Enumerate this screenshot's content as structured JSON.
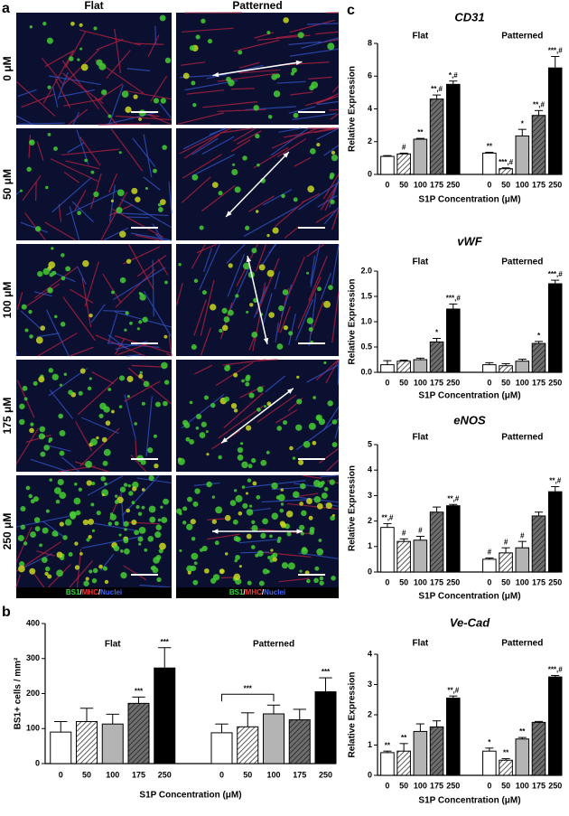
{
  "panels": {
    "a": "a",
    "b": "b",
    "c": "c"
  },
  "micrographs": {
    "columns": [
      "Flat",
      "Patterned"
    ],
    "rows": [
      "0 μM",
      "50 μM",
      "100 μM",
      "175 μM",
      "250 μM"
    ],
    "legend": [
      {
        "text": "BS1",
        "color": "#33dd33"
      },
      {
        "text": "/",
        "color": "#ffffff"
      },
      {
        "text": "MHC",
        "color": "#ff3333"
      },
      {
        "text": "/",
        "color": "#ffffff"
      },
      {
        "text": "Nuclei",
        "color": "#4466ff"
      }
    ]
  },
  "chart_data": [
    {
      "type": "bar",
      "ylabel": "BS1+ cells / mm²",
      "xlabel": "S1P Concentration (μM)",
      "categories": [
        "0",
        "50",
        "100",
        "175",
        "250"
      ],
      "fills": [
        "#ffffff",
        "hatch",
        "#b4b4b4",
        "darkhatch",
        "#000000"
      ],
      "ylim": [
        0,
        400
      ],
      "yticks": [
        0,
        100,
        200,
        300,
        400
      ],
      "series": [
        {
          "name": "Flat",
          "values": [
            90,
            120,
            113,
            172,
            273
          ],
          "errors": [
            30,
            38,
            28,
            18,
            58
          ],
          "annotations": [
            null,
            null,
            null,
            "***",
            "***"
          ]
        },
        {
          "name": "Patterned",
          "values": [
            88,
            105,
            142,
            125,
            205
          ],
          "errors": [
            25,
            40,
            25,
            30,
            40
          ],
          "annotations": [
            null,
            null,
            null,
            null,
            "***"
          ]
        }
      ],
      "bracket": {
        "series": 1,
        "from": 0,
        "to": 2,
        "label": "***"
      }
    },
    {
      "type": "bar",
      "title": "CD31",
      "ylabel": "Relative Expression",
      "xlabel": "S1P Concentration (μM)",
      "categories": [
        "0",
        "50",
        "100",
        "175",
        "250"
      ],
      "fills": [
        "#ffffff",
        "hatch",
        "#b4b4b4",
        "darkhatch",
        "#000000"
      ],
      "ylim": [
        0,
        8
      ],
      "yticks": [
        0,
        2,
        4,
        6,
        8
      ],
      "series": [
        {
          "name": "Flat",
          "values": [
            1.1,
            1.25,
            2.15,
            4.6,
            5.5
          ],
          "errors": [
            0.05,
            0.05,
            0.05,
            0.25,
            0.2
          ],
          "annotations": [
            null,
            "#",
            "**",
            "**,#",
            "*,#"
          ]
        },
        {
          "name": "Patterned",
          "values": [
            1.3,
            0.35,
            2.35,
            3.6,
            6.5
          ],
          "errors": [
            0.05,
            0.05,
            0.4,
            0.3,
            0.7
          ],
          "annotations": [
            "**",
            "***,#",
            "*",
            "**,#",
            "***,#"
          ]
        }
      ]
    },
    {
      "type": "bar",
      "title": "vWF",
      "ylabel": "Relative Expression",
      "xlabel": "S1P Concentration (μM)",
      "categories": [
        "0",
        "50",
        "100",
        "175",
        "250"
      ],
      "fills": [
        "#ffffff",
        "hatch",
        "#b4b4b4",
        "darkhatch",
        "#000000"
      ],
      "ylim": [
        0,
        2
      ],
      "yticks": [
        {
          "value": 0,
          "label": "0.0"
        },
        {
          "value": 0.5,
          "label": "0.5"
        },
        {
          "value": 1,
          "label": "1.0"
        },
        {
          "value": 1.5,
          "label": "1.5"
        },
        {
          "value": 2,
          "label": "2.0"
        }
      ],
      "series": [
        {
          "name": "Flat",
          "values": [
            0.15,
            0.22,
            0.25,
            0.6,
            1.25
          ],
          "errors": [
            0.08,
            0.02,
            0.03,
            0.07,
            0.1
          ],
          "annotations": [
            null,
            null,
            null,
            "*",
            "***,#"
          ]
        },
        {
          "name": "Patterned",
          "values": [
            0.15,
            0.13,
            0.22,
            0.57,
            1.75
          ],
          "errors": [
            0.04,
            0.04,
            0.04,
            0.04,
            0.07
          ],
          "annotations": [
            null,
            null,
            null,
            "*",
            "***,#"
          ]
        }
      ]
    },
    {
      "type": "bar",
      "title": "eNOS",
      "ylabel": "Relative Expression",
      "xlabel": "S1P Concentration (μM)",
      "categories": [
        "0",
        "50",
        "100",
        "175",
        "250"
      ],
      "fills": [
        "#ffffff",
        "hatch",
        "#b4b4b4",
        "darkhatch",
        "#000000"
      ],
      "ylim": [
        0,
        5
      ],
      "yticks": [
        0,
        1,
        2,
        3,
        4,
        5
      ],
      "series": [
        {
          "name": "Flat",
          "values": [
            1.75,
            1.2,
            1.25,
            2.35,
            2.6
          ],
          "errors": [
            0.15,
            0.1,
            0.15,
            0.2,
            0.05
          ],
          "annotations": [
            "**,#",
            "#",
            "#",
            null,
            "**,#"
          ]
        },
        {
          "name": "Patterned",
          "values": [
            0.5,
            0.75,
            0.95,
            2.2,
            3.15
          ],
          "errors": [
            0.05,
            0.2,
            0.25,
            0.15,
            0.2
          ],
          "annotations": [
            "#",
            "#",
            "#",
            null,
            "**,#"
          ]
        }
      ]
    },
    {
      "type": "bar",
      "title": "Ve-Cad",
      "ylabel": "Relative Expression",
      "xlabel": "S1P Concentration (μM)",
      "categories": [
        "0",
        "50",
        "100",
        "175",
        "250"
      ],
      "fills": [
        "#ffffff",
        "hatch",
        "#b4b4b4",
        "darkhatch",
        "#000000"
      ],
      "ylim": [
        0,
        4
      ],
      "yticks": [
        0,
        1,
        2,
        3,
        4
      ],
      "series": [
        {
          "name": "Flat",
          "values": [
            0.75,
            0.8,
            1.45,
            1.6,
            2.55
          ],
          "errors": [
            0.05,
            0.25,
            0.25,
            0.2,
            0.07
          ],
          "annotations": [
            "**",
            "**",
            null,
            null,
            "**,#"
          ]
        },
        {
          "name": "Patterned",
          "values": [
            0.8,
            0.5,
            1.2,
            1.75,
            3.25
          ],
          "errors": [
            0.1,
            0.05,
            0.05,
            0.03,
            0.05
          ],
          "annotations": [
            "*",
            "**",
            "**",
            null,
            "***,#"
          ]
        }
      ]
    }
  ]
}
